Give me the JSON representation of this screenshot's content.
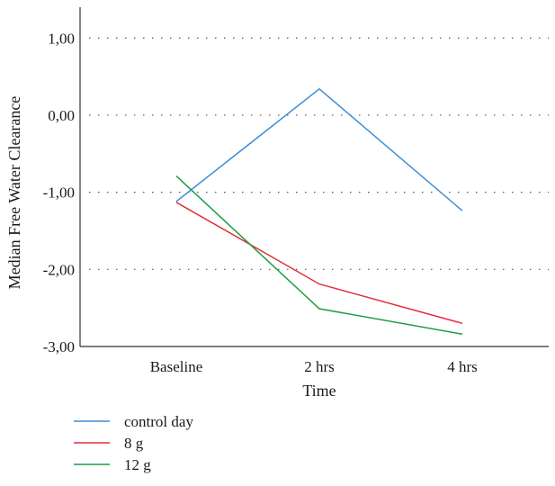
{
  "chart_data": {
    "type": "line",
    "title": "",
    "xlabel": "Time",
    "ylabel": "Median Free Water Clearance",
    "categories": [
      "Baseline",
      "2 hrs",
      "4 hrs"
    ],
    "y_ticks": [
      {
        "value": 1,
        "label": "1,00"
      },
      {
        "value": 0,
        "label": "0,00"
      },
      {
        "value": -1,
        "label": "-1,00"
      },
      {
        "value": -2,
        "label": "-2,00"
      },
      {
        "value": -3,
        "label": "-3,00"
      }
    ],
    "ylim": [
      -3,
      1.4
    ],
    "grid": "horizontal dotted",
    "legend_position": "bottom-left",
    "series": [
      {
        "name": "control day",
        "color": "#3b8ed6",
        "values": [
          -1.12,
          0.34,
          -1.24
        ]
      },
      {
        "name": "8 g",
        "color": "#e0303c",
        "values": [
          -1.13,
          -2.19,
          -2.7
        ]
      },
      {
        "name": "12 g",
        "color": "#1e9e44",
        "values": [
          -0.79,
          -2.51,
          -2.84
        ]
      }
    ]
  }
}
